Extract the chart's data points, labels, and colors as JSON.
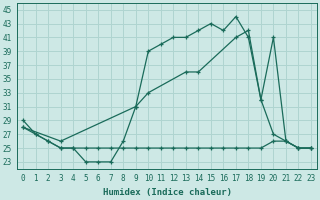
{
  "xlabel": "Humidex (Indice chaleur)",
  "bg_color": "#cde8e5",
  "grid_color": "#afd4d0",
  "line_color": "#1a6b5a",
  "xlim": [
    -0.5,
    23.5
  ],
  "ylim": [
    22,
    46
  ],
  "yticks": [
    23,
    25,
    27,
    29,
    31,
    33,
    35,
    37,
    39,
    41,
    43,
    45
  ],
  "xticks": [
    0,
    1,
    2,
    3,
    4,
    5,
    6,
    7,
    8,
    9,
    10,
    11,
    12,
    13,
    14,
    15,
    16,
    17,
    18,
    19,
    20,
    21,
    22,
    23
  ],
  "line1_x": [
    0,
    1,
    2,
    3,
    4,
    5,
    6,
    7,
    8,
    9,
    10,
    11,
    12,
    13,
    14,
    15,
    16,
    17,
    18,
    19,
    20,
    21,
    22,
    23
  ],
  "line1_y": [
    29,
    27,
    26,
    25,
    25,
    23,
    23,
    23,
    26,
    31,
    39,
    40,
    41,
    41,
    42,
    43,
    42,
    44,
    41,
    32,
    27,
    26,
    25,
    25
  ],
  "line2_x": [
    0,
    1,
    2,
    3,
    4,
    5,
    6,
    7,
    8,
    9,
    10,
    11,
    12,
    13,
    14,
    15,
    16,
    17,
    18,
    19,
    20,
    21,
    22,
    23
  ],
  "line2_y": [
    28,
    27,
    26,
    25,
    25,
    25,
    25,
    25,
    25,
    25,
    25,
    25,
    25,
    25,
    25,
    25,
    25,
    25,
    25,
    25,
    26,
    26,
    25,
    25
  ],
  "line3_x": [
    0,
    3,
    9,
    10,
    13,
    14,
    17,
    18,
    19,
    20,
    21,
    22,
    23
  ],
  "line3_y": [
    28,
    26,
    31,
    33,
    36,
    36,
    41,
    42,
    32,
    41,
    26,
    25,
    25
  ]
}
